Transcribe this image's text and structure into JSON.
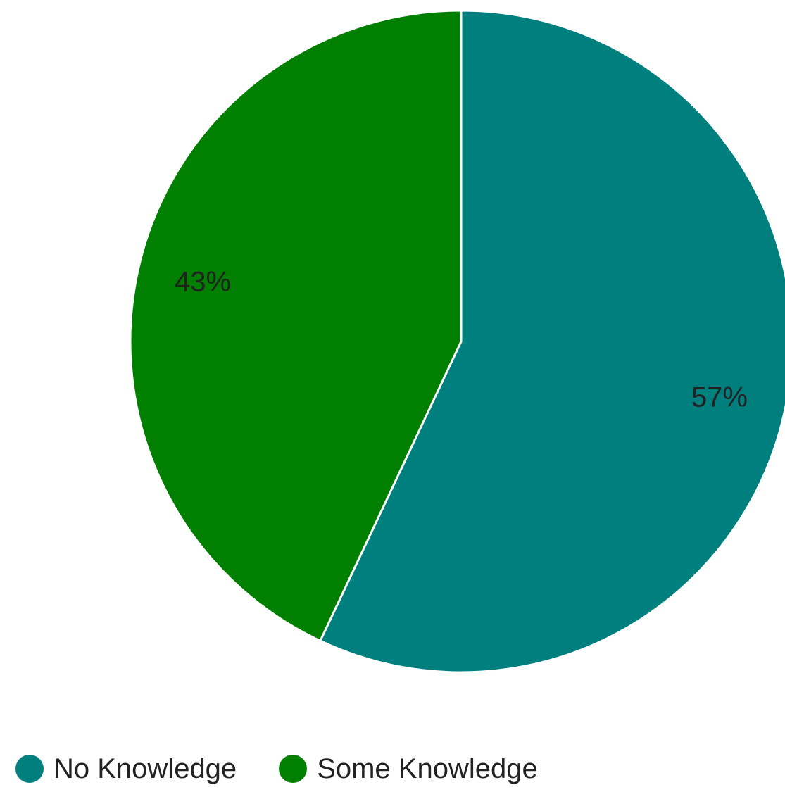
{
  "chart_data": {
    "type": "pie",
    "categories": [
      "No Knowledge",
      "Some Knowledge"
    ],
    "values": [
      57,
      43
    ],
    "labels": [
      "57%",
      "43%"
    ],
    "colors": [
      "#007f7f",
      "#007f00"
    ],
    "legend": "bottom-left",
    "start_angle": "12-o'clock",
    "direction": "clockwise"
  }
}
